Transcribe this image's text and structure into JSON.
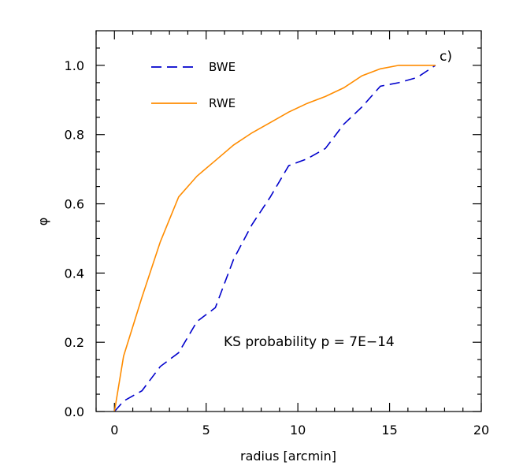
{
  "chart_data": {
    "type": "line",
    "xlabel": "radius [arcmin]",
    "ylabel": "φ",
    "xlim": [
      -1,
      20
    ],
    "ylim": [
      0,
      1.1
    ],
    "xticks": [
      0,
      5,
      10,
      15,
      20
    ],
    "yticks": [
      0.0,
      0.2,
      0.4,
      0.6,
      0.8,
      1.0
    ],
    "xtick_labels": [
      "0",
      "5",
      "10",
      "15",
      "20"
    ],
    "ytick_labels": [
      "0.0",
      "0.2",
      "0.4",
      "0.6",
      "0.8",
      "1.0"
    ],
    "panel_label": "c)",
    "annotation": "KS probability p = 7E−14",
    "legend": {
      "placement": "top-left"
    },
    "series": [
      {
        "name": "BWE",
        "color": "#0000cc",
        "dash": "dashed",
        "x": [
          0,
          0.5,
          1.5,
          2.5,
          3.5,
          4.5,
          5.5,
          6.5,
          7.5,
          8.5,
          9.5,
          10.5,
          11.5,
          12.5,
          13.5,
          14.5,
          15.5,
          16.5,
          17.5
        ],
        "y": [
          0.0,
          0.03,
          0.06,
          0.13,
          0.17,
          0.26,
          0.3,
          0.44,
          0.54,
          0.62,
          0.71,
          0.73,
          0.76,
          0.83,
          0.88,
          0.94,
          0.95,
          0.965,
          1.0
        ]
      },
      {
        "name": "RWE",
        "color": "#ff8c00",
        "dash": "solid",
        "x": [
          0,
          0.5,
          1.5,
          2.5,
          3.5,
          4.5,
          5.5,
          6.5,
          7.5,
          8.5,
          9.5,
          10.5,
          11.5,
          12.5,
          13.5,
          14.5,
          15.5,
          16.5,
          17.5
        ],
        "y": [
          0.0,
          0.16,
          0.33,
          0.49,
          0.62,
          0.68,
          0.725,
          0.77,
          0.805,
          0.835,
          0.865,
          0.89,
          0.91,
          0.935,
          0.97,
          0.99,
          1.0,
          1.0,
          1.0
        ]
      }
    ]
  }
}
